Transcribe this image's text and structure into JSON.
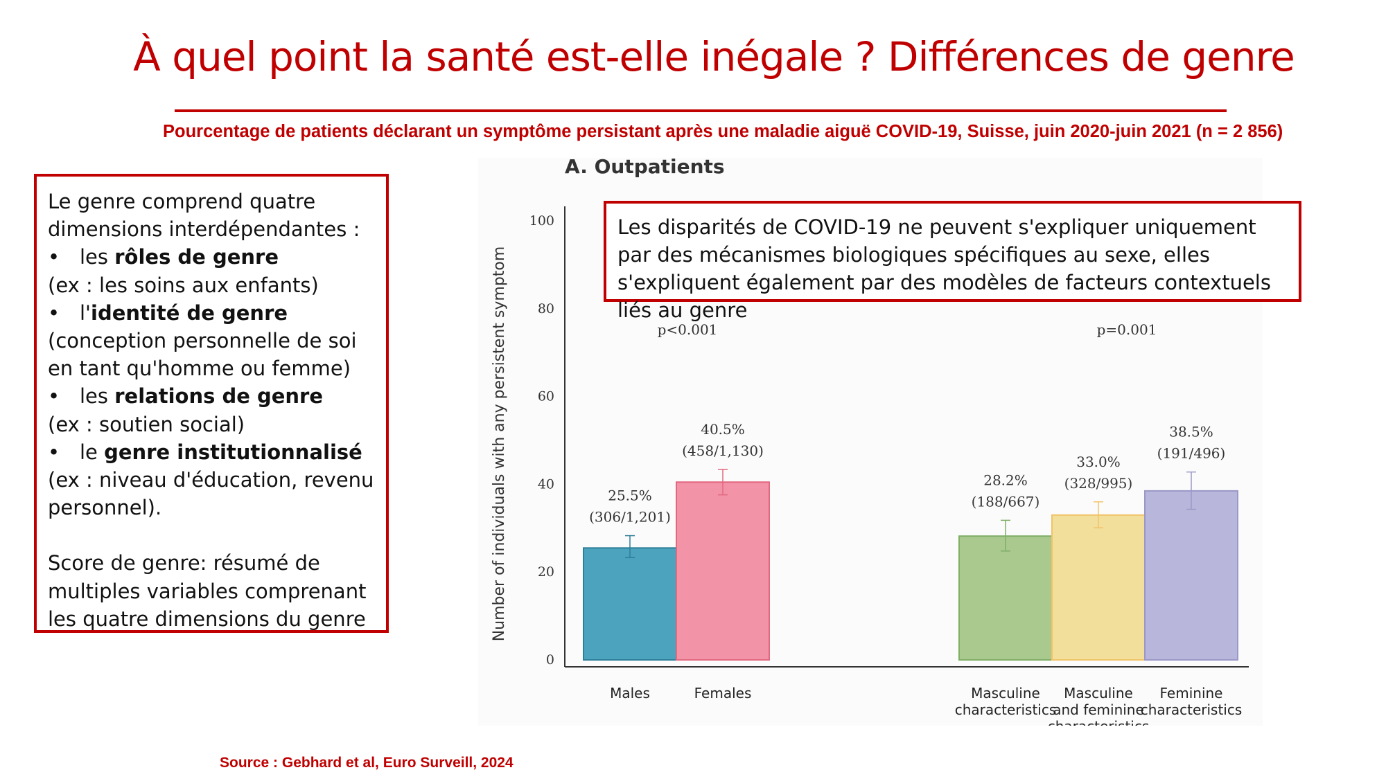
{
  "title": "À quel point la santé est-elle inégale ? Différences de genre",
  "subtitle": "Pourcentage de patients déclarant un symptôme persistant après une maladie aiguë COVID-19, Suisse, juin 2020-juin 2021 (n = 2 856)",
  "left_box": {
    "intro": "Le genre comprend quatre dimensions interdépendantes :",
    "bullets": [
      {
        "prefix": "les ",
        "bold": "rôles de genre",
        "note": "(ex : les soins aux enfants)"
      },
      {
        "prefix": "l'",
        "bold": "identité de genre",
        "note": "(conception personnelle de soi en tant qu'homme ou femme)"
      },
      {
        "prefix": "les ",
        "bold": "relations de genre",
        "note": "(ex : soutien social)"
      },
      {
        "prefix": "le ",
        "bold": "genre institutionnalisé",
        "note": "(ex : niveau d'éducation, revenu personnel)."
      }
    ],
    "bullet_symbol": "•",
    "score": "Score de genre: résumé de multiples variables comprenant les quatre dimensions du genre"
  },
  "callout": "Les disparités de COVID-19 ne peuvent s'expliquer uniquement par des mécanismes biologiques spécifiques au sexe, elles s'expliquent également par des modèles de facteurs contextuels liés au genre",
  "source": "Source : Gebhard et al, Euro Surveill, 2024",
  "chart_data": {
    "type": "bar",
    "title": "A. Outpatients",
    "ylabel": "Number of individuals with any persistent symptom",
    "xlabel": "",
    "ylim": [
      0,
      100
    ],
    "yticks": [
      0,
      20,
      40,
      60,
      80,
      100
    ],
    "groups": [
      {
        "pvalue": "p<0.001",
        "bars": [
          {
            "category": [
              "Males"
            ],
            "value": 25.5,
            "err_low": 23.3,
            "err_high": 28.3,
            "pct_label": "25.5%",
            "count_label": "(306/1,201)",
            "color": "#4ba3bd",
            "border": "#2e7f99"
          },
          {
            "category": [
              "Females"
            ],
            "value": 40.5,
            "err_low": 37.6,
            "err_high": 43.4,
            "pct_label": "40.5%",
            "count_label": "(458/1,130)",
            "color": "#f293a8",
            "border": "#e2687f"
          }
        ]
      },
      {
        "pvalue": "p=0.001",
        "bars": [
          {
            "category": [
              "Masculine",
              "characteristics"
            ],
            "value": 28.2,
            "err_low": 24.8,
            "err_high": 31.8,
            "pct_label": "28.2%",
            "count_label": "(188/667)",
            "color": "#a9c98f",
            "border": "#7fae66"
          },
          {
            "category": [
              "Masculine",
              "and feminine",
              "characteristics"
            ],
            "value": 33.0,
            "err_low": 30.1,
            "err_high": 36.0,
            "pct_label": "33.0%",
            "count_label": "(328/995)",
            "color": "#f2df9c",
            "border": "#f1c368"
          },
          {
            "category": [
              "Feminine",
              "characteristics"
            ],
            "value": 38.5,
            "err_low": 34.3,
            "err_high": 42.8,
            "pct_label": "38.5%",
            "count_label": "(191/496)",
            "color": "#b8b6da",
            "border": "#9a98c7"
          }
        ]
      }
    ]
  }
}
